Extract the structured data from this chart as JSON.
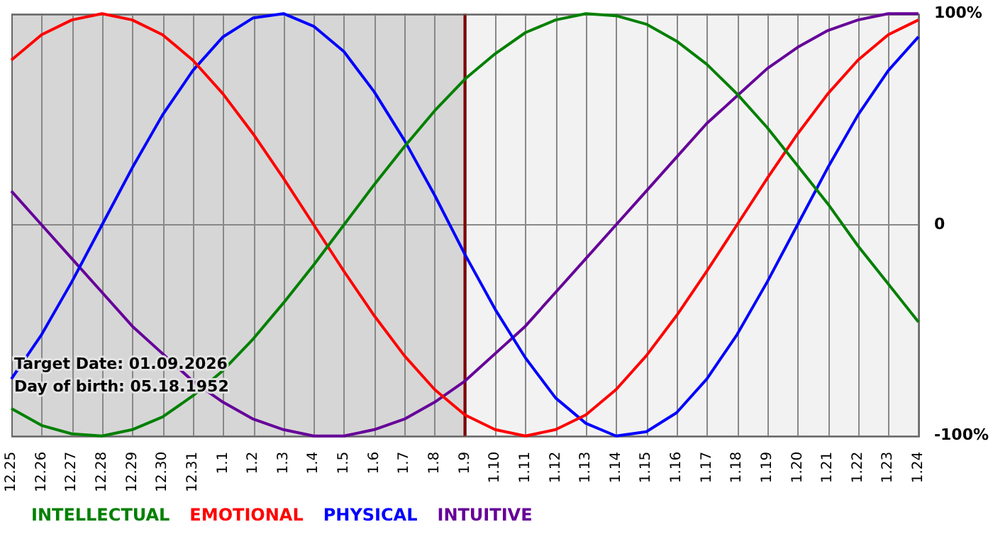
{
  "chart_data": {
    "type": "line",
    "categories": [
      "12.25",
      "12.26",
      "12.27",
      "12.28",
      "12.29",
      "12.30",
      "12.31",
      "1.1",
      "1.2",
      "1.3",
      "1.4",
      "1.5",
      "1.6",
      "1.7",
      "1.8",
      "1.9",
      "1.10",
      "1.11",
      "1.12",
      "1.13",
      "1.14",
      "1.15",
      "1.16",
      "1.17",
      "1.18",
      "1.19",
      "1.20",
      "1.21",
      "1.22",
      "1.23",
      "1.24"
    ],
    "series": [
      {
        "name": "INTELLECTUAL",
        "color": "#008000",
        "values": [
          -87,
          -95,
          -99,
          -100,
          -97,
          -91,
          -81,
          -69,
          -54,
          -37,
          -19,
          0,
          19,
          37,
          54,
          69,
          81,
          91,
          97,
          100,
          99,
          95,
          87,
          76,
          62,
          46,
          28,
          10,
          -10,
          -28,
          -46
        ]
      },
      {
        "name": "EMOTIONAL",
        "color": "#ff0000",
        "values": [
          78,
          90,
          97,
          100,
          97,
          90,
          78,
          62,
          43,
          22,
          0,
          -22,
          -43,
          -62,
          -78,
          -90,
          -97,
          -100,
          -97,
          -90,
          -78,
          -62,
          -43,
          -22,
          0,
          22,
          43,
          62,
          78,
          90,
          97
        ]
      },
      {
        "name": "PHYSICAL",
        "color": "#0000ff",
        "values": [
          -73,
          -52,
          -27,
          0,
          27,
          52,
          73,
          89,
          98,
          100,
          94,
          82,
          63,
          40,
          14,
          -14,
          -40,
          -63,
          -82,
          -94,
          -100,
          -98,
          -89,
          -73,
          -52,
          -27,
          0,
          27,
          52,
          73,
          89
        ]
      },
      {
        "name": "INTUITIVE",
        "color": "#660099",
        "values": [
          16,
          0,
          -16,
          -32,
          -48,
          -61,
          -74,
          -84,
          -92,
          -97,
          -100,
          -100,
          -97,
          -92,
          -84,
          -74,
          -61,
          -48,
          -32,
          -16,
          0,
          16,
          32,
          48,
          61,
          74,
          84,
          92,
          97,
          100,
          100
        ]
      }
    ],
    "ylim": [
      -100,
      100
    ],
    "yticks": [
      {
        "value": -100,
        "label": "-100%"
      },
      0,
      {
        "value": 100,
        "label": "100%"
      }
    ],
    "ref_lines": [
      {
        "axis": "x",
        "value": "1.9",
        "color": "#800000"
      }
    ],
    "bands": [
      {
        "axis": "x",
        "from": "12.25",
        "to": "1.9",
        "color": "#d6d6d6"
      }
    ],
    "annotations": [
      "Target Date: 01.09.2026",
      "Day of birth: 05.18.1952"
    ],
    "grid": true,
    "legend": "bottom",
    "marker": "none",
    "line_style": "solid"
  }
}
